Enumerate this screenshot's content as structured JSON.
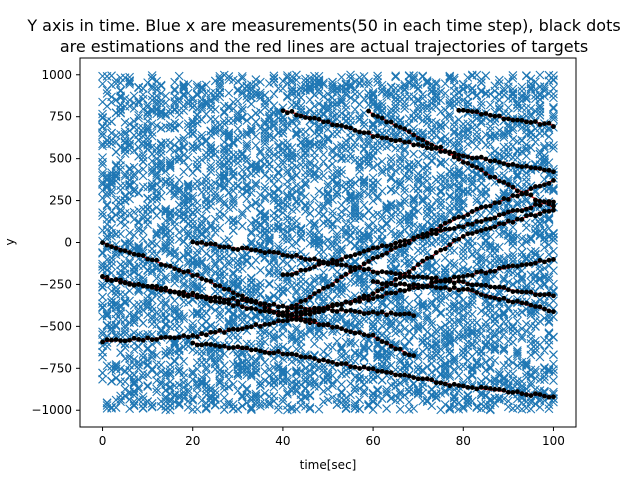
{
  "chart_data": {
    "type": "scatter",
    "title_lines": [
      "Y axis in time. Blue x are measurements(50 in each time step), black dots",
      "are estimations and the red lines are actual trajectories of targets"
    ],
    "xlabel": "time[sec]",
    "ylabel": "y",
    "xlim": [
      -5,
      105
    ],
    "ylim": [
      -1100,
      1100
    ],
    "x_ticks": [
      0,
      20,
      40,
      60,
      80,
      100
    ],
    "y_ticks": [
      -1000,
      -750,
      -500,
      -250,
      0,
      250,
      500,
      750,
      1000
    ],
    "grid": false,
    "measurements": {
      "marker": "x",
      "color": "#1f77b4",
      "per_time_step": 50,
      "time_range": [
        0,
        100
      ],
      "y_range": [
        -1000,
        1000
      ]
    },
    "series": [
      {
        "marker": "dot",
        "color": "#000000",
        "points": [
          [
            40,
            790
          ],
          [
            60,
            640
          ],
          [
            80,
            520
          ],
          [
            100,
            420
          ]
        ]
      },
      {
        "marker": "dot",
        "color": "#000000",
        "points": [
          [
            59,
            780
          ],
          [
            75,
            560
          ],
          [
            90,
            340
          ],
          [
            100,
            210
          ]
        ]
      },
      {
        "marker": "dot",
        "color": "#000000",
        "points": [
          [
            79,
            790
          ],
          [
            90,
            740
          ],
          [
            100,
            700
          ]
        ]
      },
      {
        "marker": "dot",
        "color": "#000000",
        "points": [
          [
            40,
            -200
          ],
          [
            60,
            -40
          ],
          [
            80,
            100
          ],
          [
            100,
            250
          ]
        ]
      },
      {
        "marker": "dot",
        "color": "#000000",
        "points": [
          [
            40,
            -420
          ],
          [
            60,
            -100
          ],
          [
            80,
            160
          ],
          [
            100,
            370
          ]
        ]
      },
      {
        "marker": "dot",
        "color": "#000000",
        "points": [
          [
            0,
            0
          ],
          [
            20,
            -190
          ],
          [
            40,
            -430
          ],
          [
            50,
            -500
          ]
        ]
      },
      {
        "marker": "dot",
        "color": "#000000",
        "points": [
          [
            0,
            -590
          ],
          [
            20,
            -560
          ],
          [
            40,
            -470
          ],
          [
            60,
            -310
          ],
          [
            80,
            40
          ],
          [
            100,
            200
          ]
        ]
      },
      {
        "marker": "dot",
        "color": "#000000",
        "points": [
          [
            0,
            -210
          ],
          [
            20,
            -320
          ],
          [
            40,
            -430
          ],
          [
            60,
            -560
          ],
          [
            69,
            -680
          ]
        ]
      },
      {
        "marker": "dot",
        "color": "#000000",
        "points": [
          [
            0,
            -210
          ],
          [
            20,
            -310
          ],
          [
            40,
            -380
          ],
          [
            60,
            -420
          ],
          [
            69,
            -430
          ]
        ]
      },
      {
        "marker": "dot",
        "color": "#000000",
        "points": [
          [
            20,
            0
          ],
          [
            40,
            -70
          ],
          [
            60,
            -170
          ],
          [
            80,
            -240
          ],
          [
            100,
            -320
          ]
        ]
      },
      {
        "marker": "dot",
        "color": "#000000",
        "points": [
          [
            40,
            -430
          ],
          [
            60,
            -330
          ],
          [
            80,
            -200
          ],
          [
            100,
            -100
          ]
        ]
      },
      {
        "marker": "dot",
        "color": "#000000",
        "points": [
          [
            60,
            -240
          ],
          [
            80,
            -280
          ],
          [
            100,
            -410
          ]
        ]
      },
      {
        "marker": "dot",
        "color": "#000000",
        "points": [
          [
            20,
            -600
          ],
          [
            40,
            -660
          ],
          [
            60,
            -760
          ],
          [
            80,
            -860
          ],
          [
            100,
            -920
          ]
        ]
      }
    ]
  }
}
